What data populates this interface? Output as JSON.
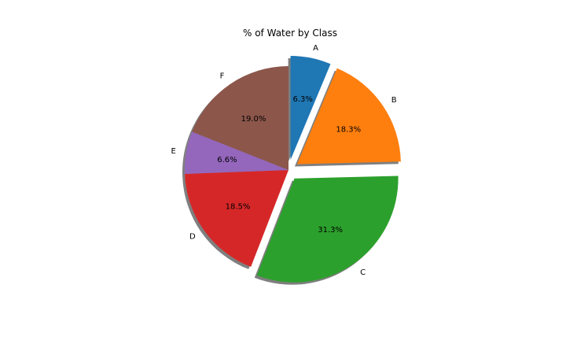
{
  "chart_data": {
    "type": "pie",
    "title": "% of Water by Class",
    "start_angle_deg": 90,
    "direction": "clockwise",
    "shadow": true,
    "slices": [
      {
        "label": "A",
        "value": 6.3,
        "pct_label": "6.3%",
        "color": "#1f77b4",
        "explode": 0.1
      },
      {
        "label": "B",
        "value": 18.3,
        "pct_label": "18.3%",
        "color": "#ff7f0e",
        "explode": 0.1
      },
      {
        "label": "C",
        "value": 31.3,
        "pct_label": "31.3%",
        "color": "#2ca02c",
        "explode": 0.1
      },
      {
        "label": "D",
        "value": 18.5,
        "pct_label": "18.5%",
        "color": "#d62728",
        "explode": 0
      },
      {
        "label": "E",
        "value": 6.6,
        "pct_label": "6.6%",
        "color": "#9467bd",
        "explode": 0
      },
      {
        "label": "F",
        "value": 19.0,
        "pct_label": "19.0%",
        "color": "#8c564b",
        "explode": 0
      }
    ]
  }
}
